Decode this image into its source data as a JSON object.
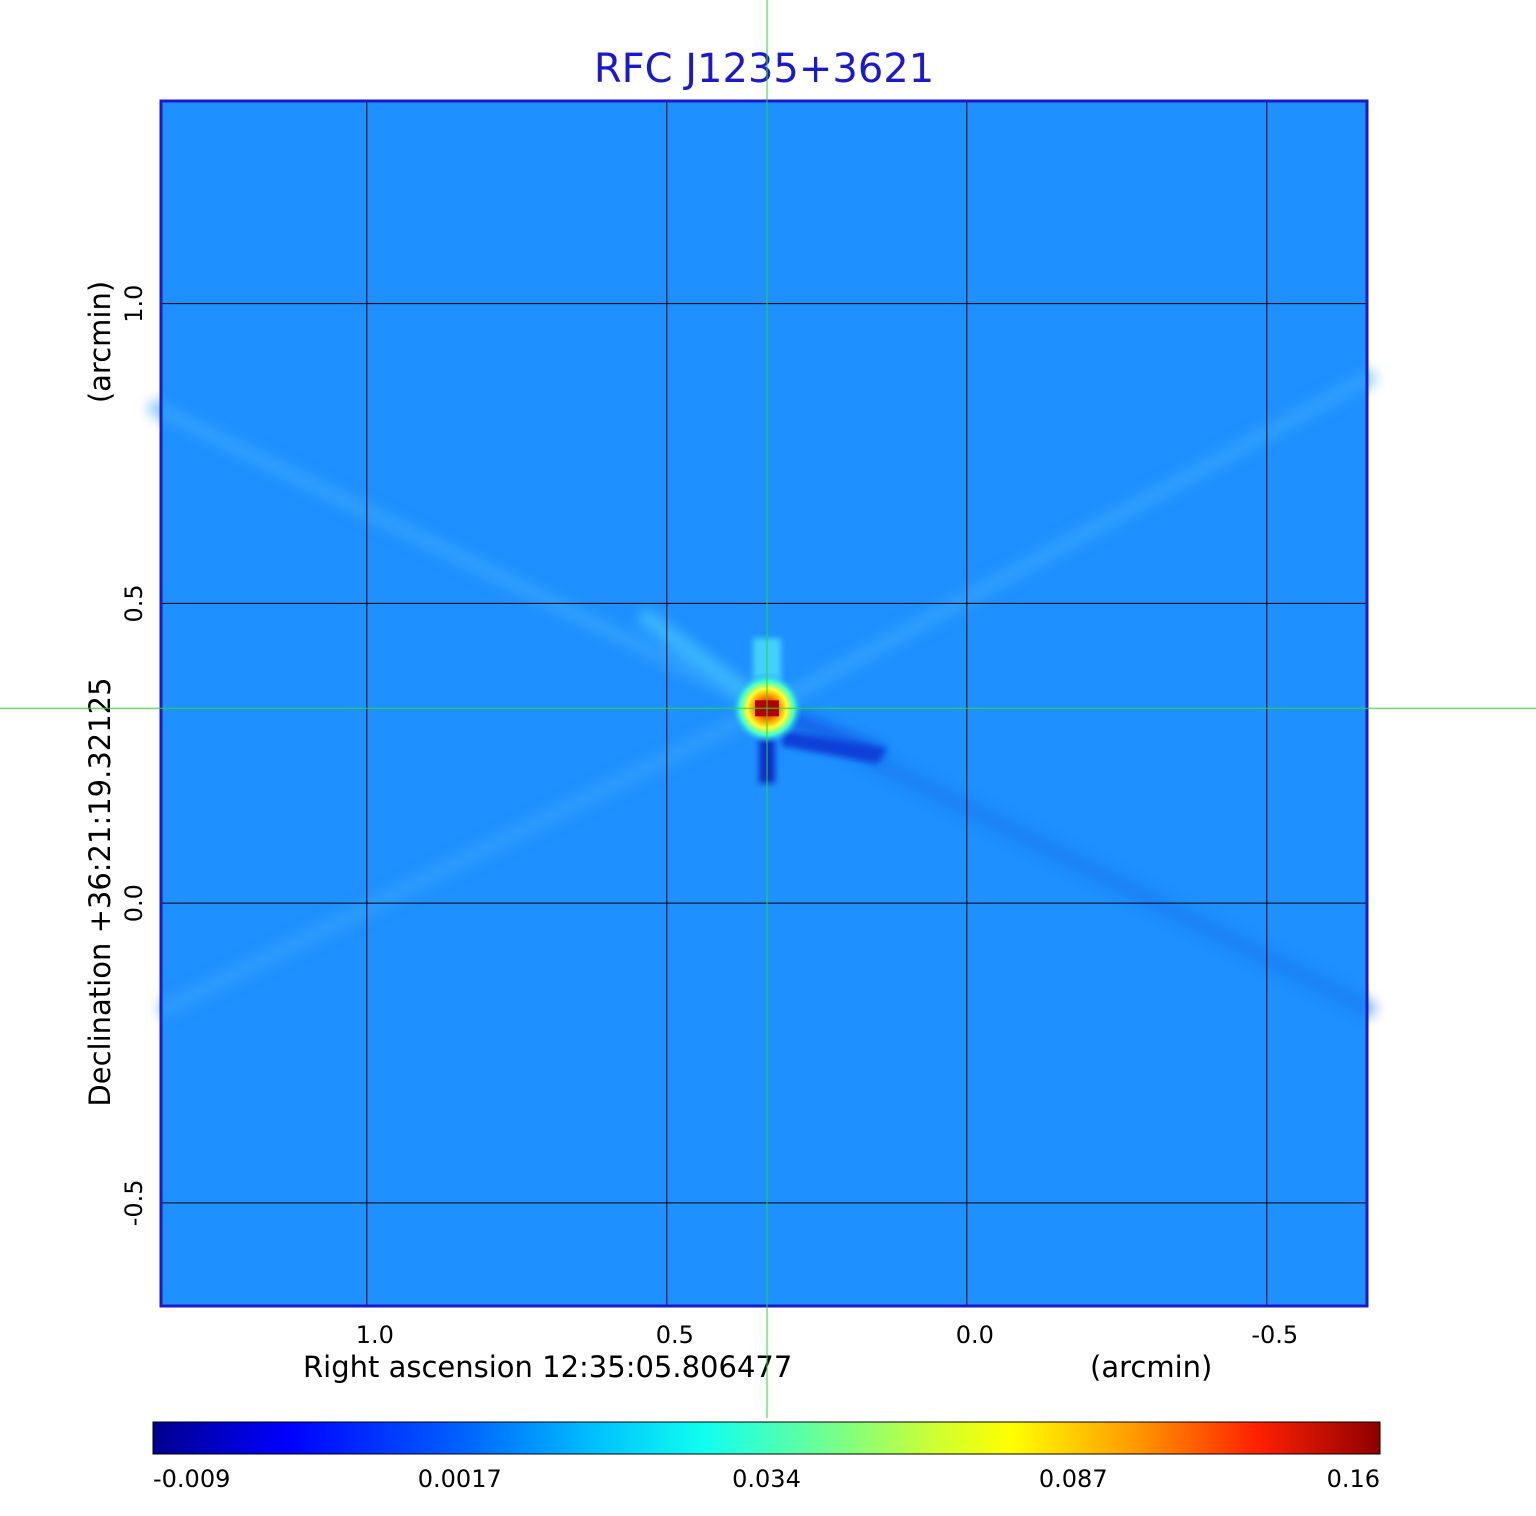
{
  "chart_data": {
    "type": "heatmap",
    "title": "RFC J1235+3621",
    "xlabel": "Right ascension  12:35:05.806477",
    "xunit": "(arcmin)",
    "ylabel": "Declination  +36:21:19.32125",
    "yunit": "(arcmin)",
    "x_ticks": [
      {
        "value": 1.0,
        "label": "1.0"
      },
      {
        "value": 0.5,
        "label": "0.5"
      },
      {
        "value": 0.0,
        "label": "0.0"
      },
      {
        "value": -0.5,
        "label": "-0.5"
      }
    ],
    "y_ticks": [
      {
        "value": 1.0,
        "label": "1.0"
      },
      {
        "value": 0.5,
        "label": "0.5"
      },
      {
        "value": 0.0,
        "label": "0.0"
      },
      {
        "value": -0.5,
        "label": "-0.5"
      }
    ],
    "xlim": [
      1.343,
      -0.667
    ],
    "ylim": [
      -0.672,
      1.338
    ],
    "x_reversed": true,
    "grid": true,
    "crosshair": {
      "x": 0.333,
      "y": 0.325,
      "color": "#22dd22"
    },
    "source": {
      "x": 0.333,
      "y": 0.325,
      "peak": 0.16
    },
    "colormap": "jet",
    "colorbar": {
      "placement": "bottom",
      "ticks": [
        "-0.009",
        "0.0017",
        "0.034",
        "0.087",
        "0.16"
      ]
    },
    "colors": {
      "background_field": "#1e90ff",
      "frame": "#1a1acc",
      "grid": "#000000"
    }
  }
}
